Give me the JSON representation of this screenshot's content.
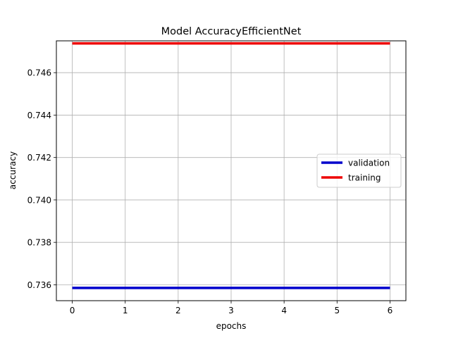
{
  "chart_data": {
    "type": "line",
    "title": "Model AccuracyEfficientNet",
    "xlabel": "epochs",
    "ylabel": "accuracy",
    "x": [
      0,
      1,
      2,
      3,
      4,
      5,
      6
    ],
    "xlim": [
      -0.3,
      6.3
    ],
    "ylim": [
      0.73525,
      0.7475
    ],
    "xticks": [
      0,
      1,
      2,
      3,
      4,
      5,
      6
    ],
    "xtick_labels": [
      "0",
      "1",
      "2",
      "3",
      "4",
      "5",
      "6"
    ],
    "yticks": [
      0.736,
      0.738,
      0.74,
      0.742,
      0.744,
      0.746
    ],
    "ytick_labels": [
      "0.736",
      "0.738",
      "0.740",
      "0.742",
      "0.744",
      "0.746"
    ],
    "grid": true,
    "legend_position": "center-right",
    "series": [
      {
        "name": "validation",
        "color": "#0000cc",
        "values": [
          0.73585,
          0.73585,
          0.73585,
          0.73585,
          0.73585,
          0.73585,
          0.73585
        ]
      },
      {
        "name": "training",
        "color": "#ee0000",
        "values": [
          0.74738,
          0.74738,
          0.74738,
          0.74738,
          0.74738,
          0.74738,
          0.74738
        ]
      }
    ]
  }
}
